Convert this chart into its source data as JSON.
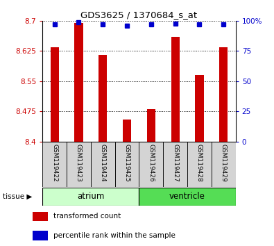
{
  "title": "GDS3625 / 1370684_s_at",
  "samples": [
    "GSM119422",
    "GSM119423",
    "GSM119424",
    "GSM119425",
    "GSM119426",
    "GSM119427",
    "GSM119428",
    "GSM119429"
  ],
  "red_values": [
    8.635,
    8.695,
    8.615,
    8.455,
    8.48,
    8.66,
    8.565,
    8.635
  ],
  "blue_values": [
    97,
    99,
    97,
    96,
    97,
    98,
    97,
    97
  ],
  "y_min": 8.4,
  "y_max": 8.7,
  "y_ticks": [
    8.4,
    8.475,
    8.55,
    8.625,
    8.7
  ],
  "y_tick_labels": [
    "8.4",
    "8.475",
    "8.55",
    "8.625",
    "8.7"
  ],
  "y2_ticks": [
    0,
    25,
    50,
    75,
    100
  ],
  "y2_tick_labels": [
    "0",
    "25",
    "50",
    "75",
    "100%"
  ],
  "tissue_groups": [
    {
      "label": "atrium",
      "start": 0,
      "end": 4,
      "color": "#ccffcc"
    },
    {
      "label": "ventricle",
      "start": 4,
      "end": 8,
      "color": "#55dd55"
    }
  ],
  "bar_color": "#cc0000",
  "dot_color": "#0000cc",
  "bar_width": 0.35,
  "base_value": 8.4,
  "bg_color": "#ffffff",
  "legend_items": [
    {
      "color": "#cc0000",
      "label": "transformed count"
    },
    {
      "color": "#0000cc",
      "label": "percentile rank within the sample"
    }
  ]
}
